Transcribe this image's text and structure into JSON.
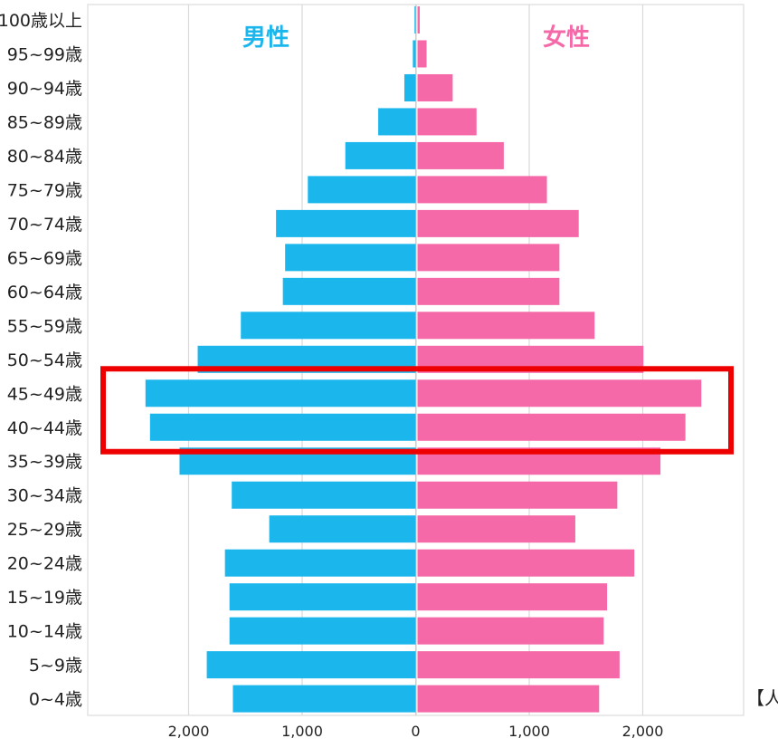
{
  "chart_data": {
    "type": "bar",
    "orientation": "horizontal",
    "layout": "population-pyramid",
    "categories": [
      "100歳以上",
      "95~99歳",
      "90~94歳",
      "85~89歳",
      "80~84歳",
      "75~79歳",
      "70~74歳",
      "65~69歳",
      "60~64歳",
      "55~59歳",
      "50~54歳",
      "45~49歳",
      "40~44歳",
      "35~39歳",
      "30~34歳",
      "25~29歳",
      "20~24歳",
      "15~19歳",
      "10~14歳",
      "5~9歳",
      "0~4歳"
    ],
    "series": [
      {
        "name": "男性",
        "side": "left",
        "color": "#1ab6ec",
        "values": [
          10,
          25,
          100,
          330,
          620,
          950,
          1230,
          1150,
          1170,
          1540,
          1920,
          2380,
          2340,
          2080,
          1620,
          1290,
          1680,
          1640,
          1640,
          1840,
          1610
        ]
      },
      {
        "name": "女性",
        "side": "right",
        "color": "#f569a8",
        "values": [
          20,
          80,
          310,
          520,
          760,
          1140,
          1420,
          1250,
          1250,
          1560,
          1990,
          2500,
          2360,
          2140,
          1760,
          1390,
          1910,
          1670,
          1640,
          1780,
          1600
        ]
      }
    ],
    "xlim": [
      -2850,
      2850
    ],
    "xticks": [
      -2000,
      -1000,
      0,
      1000,
      2000
    ],
    "xtick_labels": [
      "2,000",
      "1,000",
      "0",
      "1,000",
      "2,000"
    ],
    "unit_label": "【人】",
    "highlight": {
      "from": "45~49歳",
      "to": "40~44歳",
      "color": "#ee0000"
    },
    "grid": true,
    "gridline_color": "#d9d9d9"
  }
}
